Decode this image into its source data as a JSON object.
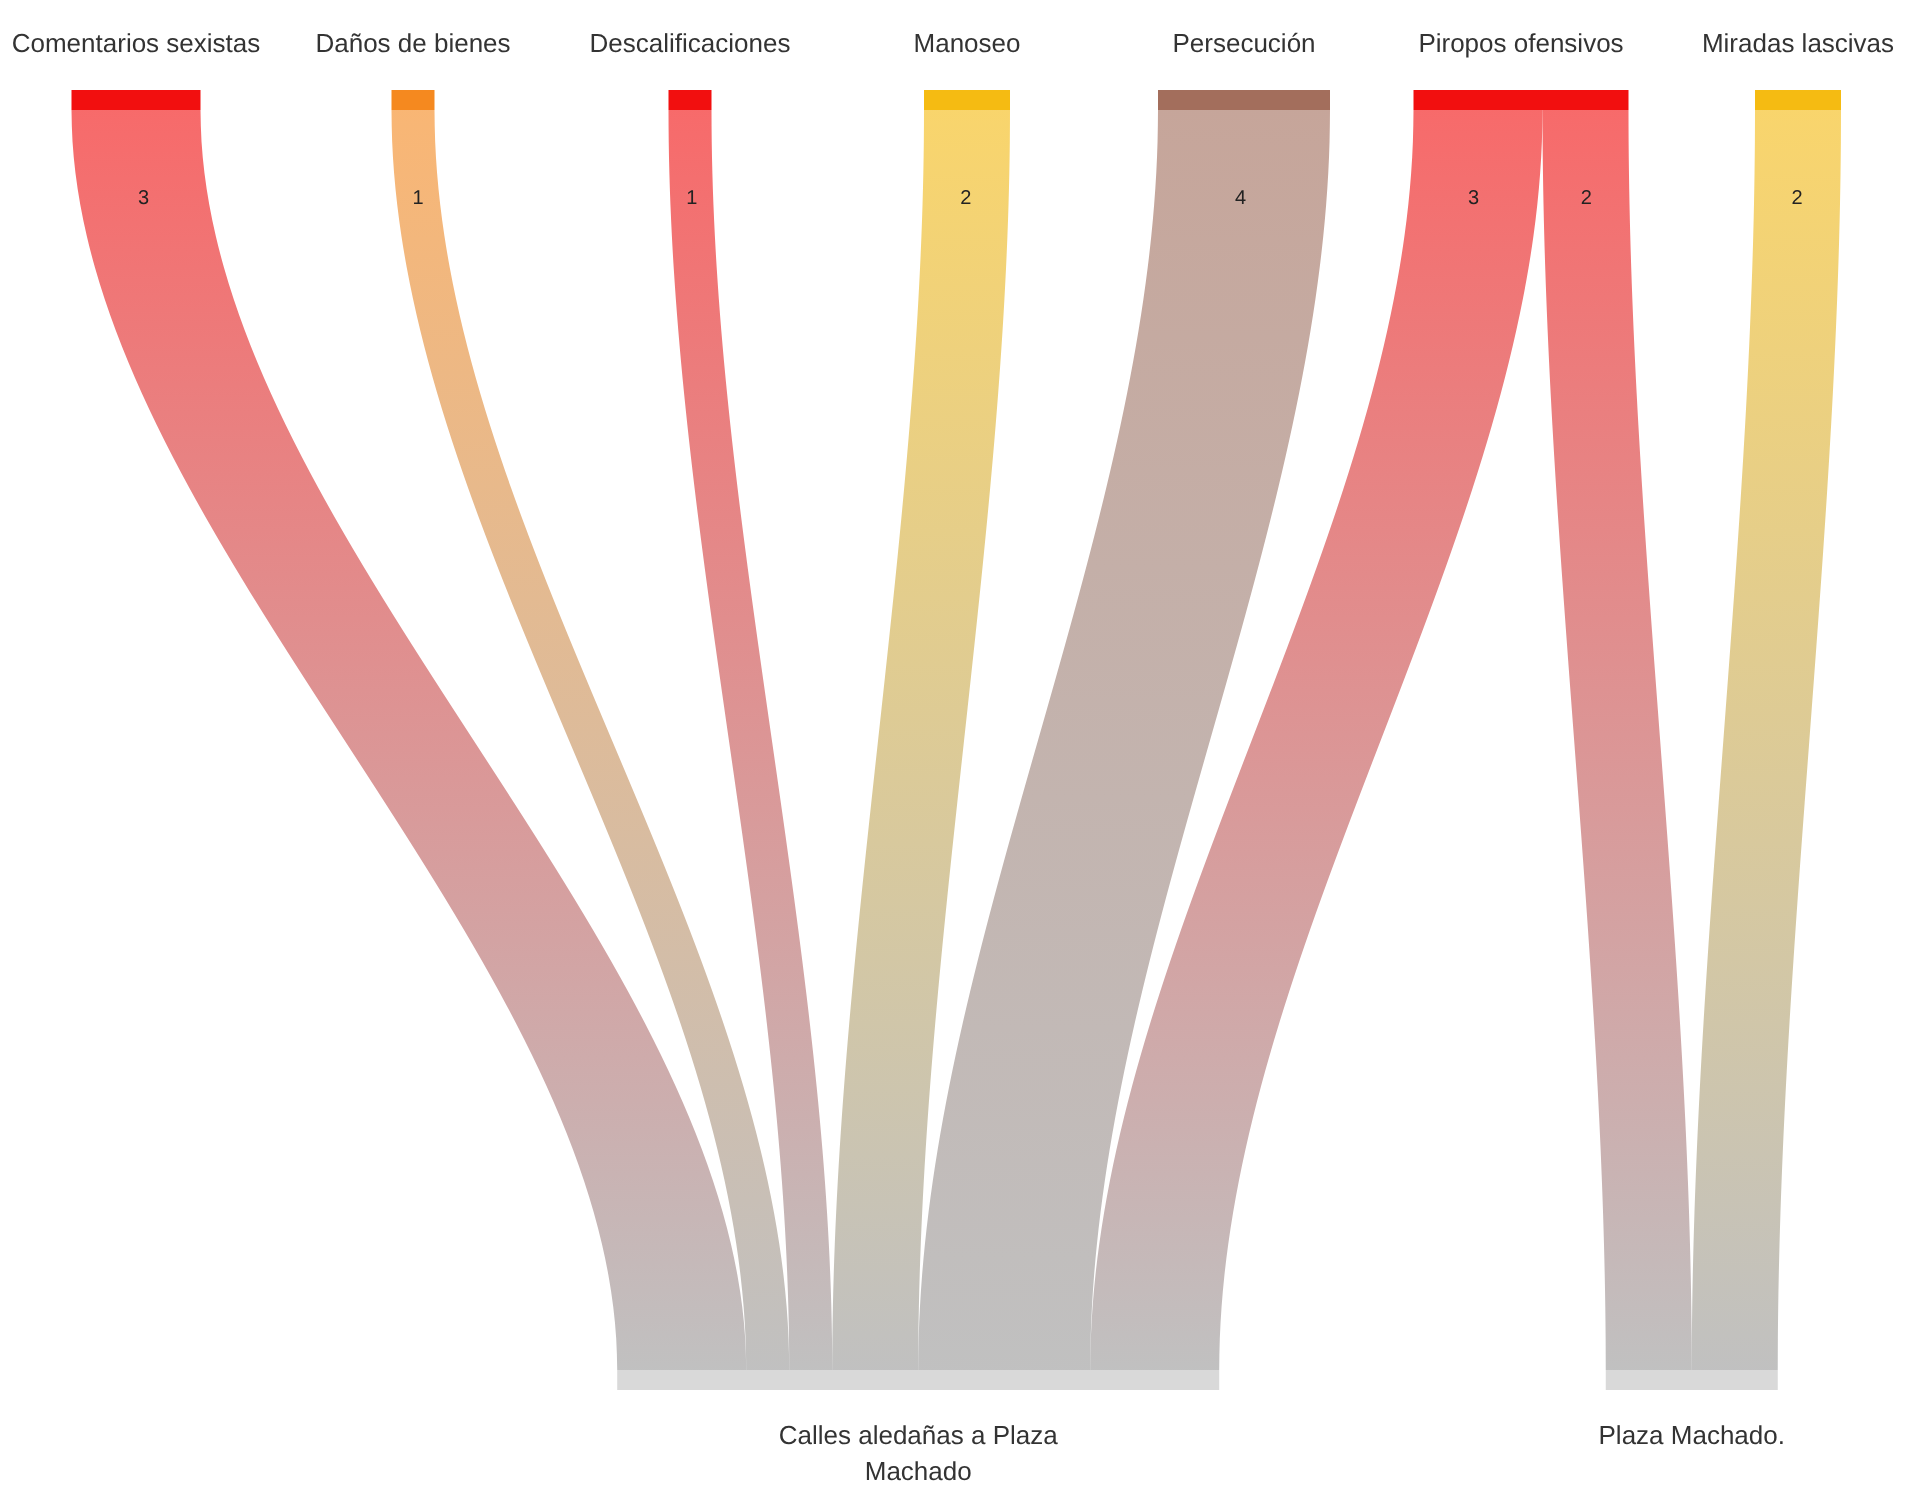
{
  "chart_data": {
    "type": "other",
    "categories": [
      "Comentarios sexistas",
      "Daños de bienes",
      "Descalificaciones",
      "Manoseo",
      "Persecución",
      "Piropos ofensivos",
      "Miradas lascivas"
    ],
    "colors": [
      "#f20f0f",
      "#f5891f",
      "#f20f0f",
      "#f5bb12",
      "#a36e5c",
      "#f20f0f",
      "#f5bb12"
    ],
    "series": [
      {
        "name": "Calles aledañas a Plaza Machado",
        "color": "#d9d9d9",
        "values": [
          3,
          1,
          1,
          2,
          4,
          3,
          null
        ]
      },
      {
        "name": "Plaza Machado.",
        "color": "#d9d9d9",
        "values": [
          null,
          null,
          null,
          null,
          null,
          2,
          2
        ]
      }
    ],
    "data_labels": true
  }
}
